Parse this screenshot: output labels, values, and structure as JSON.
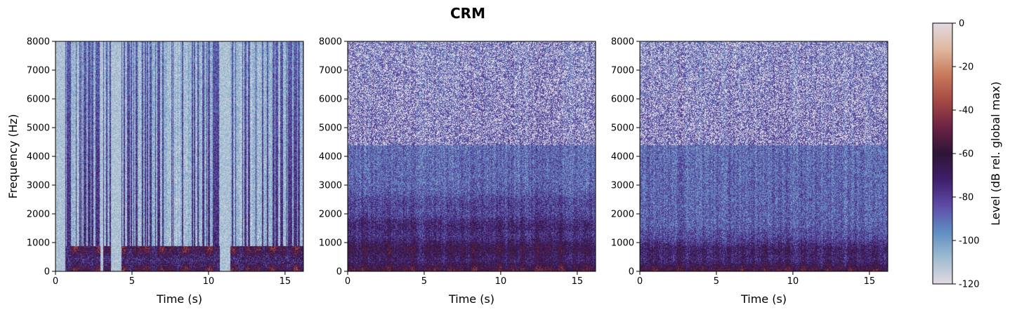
{
  "figure": {
    "title": "CRM"
  },
  "chart_data": [
    {
      "type": "heatmap",
      "panel": 1,
      "title": "",
      "xlabel": "Time (s)",
      "ylabel": "Frequency (Hz)",
      "xlim": [
        0,
        16.2
      ],
      "ylim": [
        0,
        8000
      ],
      "xticks": [
        0,
        5,
        10,
        15
      ],
      "yticks": [
        0,
        1000,
        2000,
        3000,
        4000,
        5000,
        6000,
        7000,
        8000
      ],
      "gaps_s": [
        [
          2.9,
          3.1
        ],
        [
          3.6,
          4.3
        ],
        [
          10.7,
          11.4
        ]
      ],
      "energy_profile": "sparse, many bright (low level) regions above 1000 Hz, harmonics below 1000 Hz"
    },
    {
      "type": "heatmap",
      "panel": 2,
      "title": "",
      "xlabel": "Time (s)",
      "ylabel": "",
      "xlim": [
        0,
        16.2
      ],
      "ylim": [
        0,
        8000
      ],
      "xticks": [
        0,
        5,
        10,
        15
      ],
      "yticks": [
        0,
        1000,
        2000,
        3000,
        4000,
        5000,
        6000,
        7000,
        8000
      ],
      "energy_profile": "dense, mid-level throughout, warmer below 3000 Hz"
    },
    {
      "type": "heatmap",
      "panel": 3,
      "title": "",
      "xlabel": "Time (s)",
      "ylabel": "",
      "xlim": [
        0,
        16.2
      ],
      "ylim": [
        0,
        8000
      ],
      "xticks": [
        0,
        5,
        10,
        15
      ],
      "yticks": [
        0,
        1000,
        2000,
        3000,
        4000,
        5000,
        6000,
        7000,
        8000
      ],
      "energy_profile": "dense, mid-level throughout, warmest below 1500 Hz"
    }
  ],
  "colorbar": {
    "label": "Level (dB rel. global max)",
    "range": [
      -120,
      0
    ],
    "ticks": [
      0,
      -20,
      -40,
      -60,
      -80,
      -100,
      -120
    ],
    "colormap": "twilight-like",
    "colors": [
      "#e2d9e2",
      "#9ebcd0",
      "#5f8dc2",
      "#5e4ba6",
      "#3f1f6a",
      "#2e1537",
      "#6a2244",
      "#a44844",
      "#c8785a",
      "#dfb8a0",
      "#e2d9e2"
    ]
  }
}
